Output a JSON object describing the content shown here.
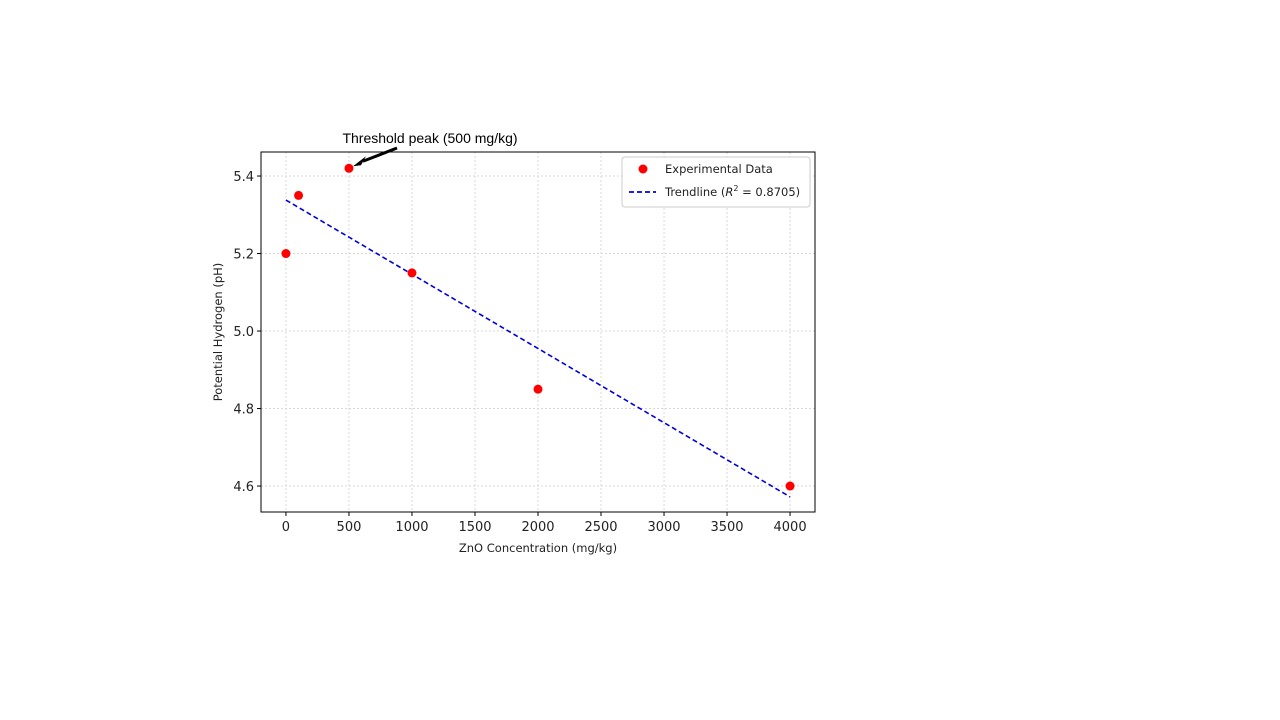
{
  "chart_data": {
    "type": "scatter",
    "title": "",
    "xlabel": "ZnO Concentration (mg/kg)",
    "ylabel": "Potential Hydrogen (pH)",
    "xlim": [
      -198,
      4198
    ],
    "ylim": [
      4.533,
      5.462
    ],
    "xticks": [
      0,
      500,
      1000,
      1500,
      2000,
      2500,
      3000,
      3500,
      4000
    ],
    "yticks": [
      4.6,
      4.8,
      5.0,
      5.2,
      5.4
    ],
    "ytick_labels": [
      "4.6",
      "4.8",
      "5.0",
      "5.2",
      "5.4"
    ],
    "grid": true,
    "legend_position": "top-right",
    "series": [
      {
        "name": "Experimental Data",
        "kind": "scatter",
        "color": "#ff0000",
        "x": [
          0,
          100,
          500,
          1000,
          2000,
          4000
        ],
        "y": [
          5.2,
          5.35,
          5.42,
          5.15,
          4.85,
          4.6
        ]
      },
      {
        "name": "Trendline",
        "legend_prefix": "Trendline (",
        "legend_r": "R",
        "legend_sup": "2",
        "legend_suffix": " = 0.8705)",
        "kind": "line",
        "style": "dashed",
        "color": "#0000dd",
        "x": [
          0,
          4000
        ],
        "y": [
          5.338,
          4.572
        ]
      }
    ],
    "annotations": [
      {
        "text": "Threshold peak (500 mg/kg)",
        "x": 500,
        "y": 5.42
      }
    ]
  }
}
